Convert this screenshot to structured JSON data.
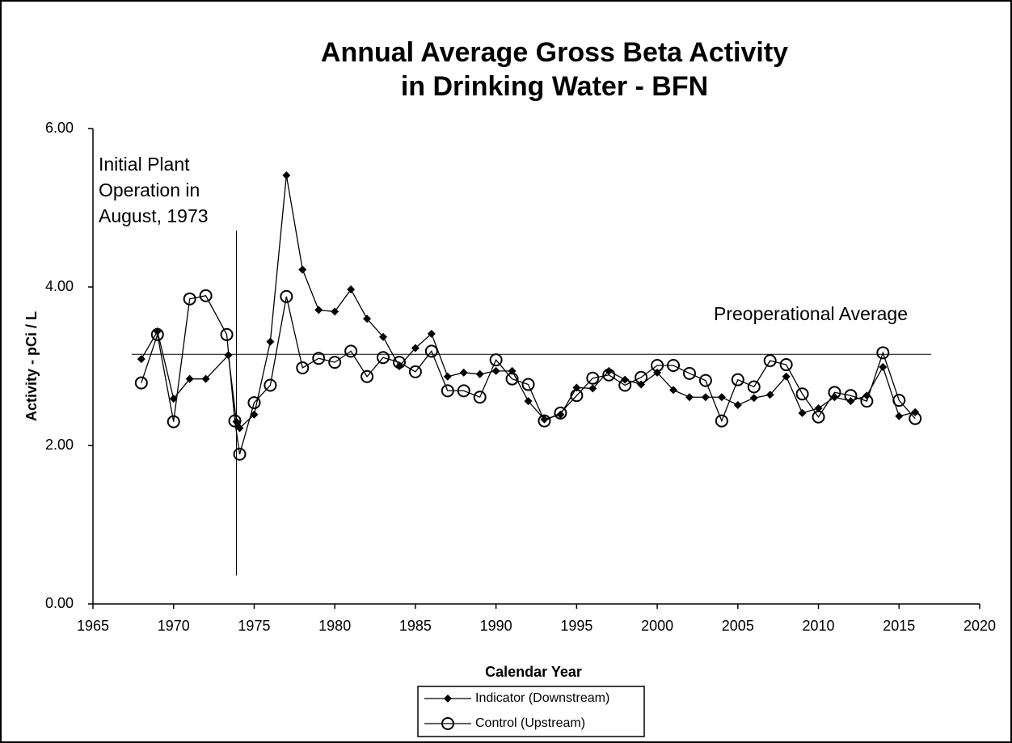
{
  "chart_data": {
    "type": "line",
    "title": [
      "Annual Average Gross Beta Activity",
      "in Drinking Water - BFN"
    ],
    "xlabel": "Calendar Year",
    "ylabel": "Activity  -  pCi / L",
    "xlim": [
      1965,
      2020
    ],
    "xticks": [
      1965,
      1970,
      1975,
      1980,
      1985,
      1990,
      1995,
      2000,
      2005,
      2010,
      2015,
      2020
    ],
    "ylim": [
      0,
      6
    ],
    "yticks": [
      {
        "value": 0,
        "label": "0.00"
      },
      {
        "value": 2,
        "label": "2.00"
      },
      {
        "value": 4,
        "label": "4.00"
      },
      {
        "value": 6,
        "label": "6.00"
      }
    ],
    "series": [
      {
        "name": "Indicator (Downstream)",
        "color": "#000000",
        "marker": "diamond",
        "x": [
          1968,
          1969,
          1970,
          1971,
          1972,
          1973.4,
          1973.9,
          1974.1,
          1975,
          1976,
          1977,
          1978,
          1979,
          1980,
          1981,
          1982,
          1983,
          1984,
          1985,
          1986,
          1987,
          1988,
          1989,
          1990,
          1991,
          1992,
          1993,
          1994,
          1995,
          1996,
          1997,
          1998,
          1999,
          2000,
          2001,
          2002,
          2003,
          2004,
          2005,
          2006,
          2007,
          2008,
          2009,
          2010,
          2011,
          2012,
          2013,
          2014,
          2015,
          2016
        ],
        "values": [
          3.09,
          3.44,
          2.59,
          2.84,
          2.84,
          3.14,
          2.3,
          2.22,
          2.39,
          3.31,
          5.41,
          4.22,
          3.71,
          3.69,
          3.97,
          3.6,
          3.37,
          3.0,
          3.23,
          3.41,
          2.87,
          2.92,
          2.9,
          2.94,
          2.94,
          2.56,
          2.33,
          2.39,
          2.73,
          2.72,
          2.94,
          2.83,
          2.77,
          2.92,
          2.7,
          2.61,
          2.61,
          2.61,
          2.51,
          2.6,
          2.64,
          2.87,
          2.41,
          2.47,
          2.61,
          2.56,
          2.63,
          2.99,
          2.37,
          2.42
        ]
      },
      {
        "name": "Control (Upstream)",
        "color": "#000000",
        "marker": "circle",
        "x": [
          1968,
          1969,
          1970,
          1971,
          1972,
          1973.3,
          1973.8,
          1974.1,
          1975,
          1976,
          1977,
          1978,
          1979,
          1980,
          1981,
          1982,
          1983,
          1984,
          1985,
          1986,
          1987,
          1988,
          1989,
          1990,
          1991,
          1992,
          1993,
          1994,
          1995,
          1996,
          1997,
          1998,
          1999,
          2000,
          2001,
          2002,
          2003,
          2004,
          2005,
          2006,
          2007,
          2008,
          2009,
          2010,
          2011,
          2012,
          2013,
          2014,
          2015,
          2016
        ],
        "values": [
          2.79,
          3.4,
          2.3,
          3.85,
          3.89,
          3.4,
          2.31,
          1.89,
          2.54,
          2.76,
          3.88,
          2.98,
          3.1,
          3.05,
          3.19,
          2.87,
          3.11,
          3.05,
          2.93,
          3.19,
          2.69,
          2.69,
          2.61,
          3.08,
          2.84,
          2.77,
          2.31,
          2.41,
          2.63,
          2.85,
          2.89,
          2.76,
          2.86,
          3.01,
          3.01,
          2.91,
          2.82,
          2.31,
          2.83,
          2.74,
          3.07,
          3.02,
          2.65,
          2.36,
          2.67,
          2.63,
          2.56,
          3.17,
          2.57,
          2.34
        ]
      }
    ],
    "preoperational_average": {
      "label": "Preoperational Average",
      "value": 3.15,
      "x": [
        1967.4,
        2017
      ]
    },
    "plant_start": {
      "label": [
        "Initial Plant",
        "Operation in",
        "August, 1973"
      ],
      "x": 1973.9,
      "y": [
        0.36,
        4.71
      ]
    }
  }
}
